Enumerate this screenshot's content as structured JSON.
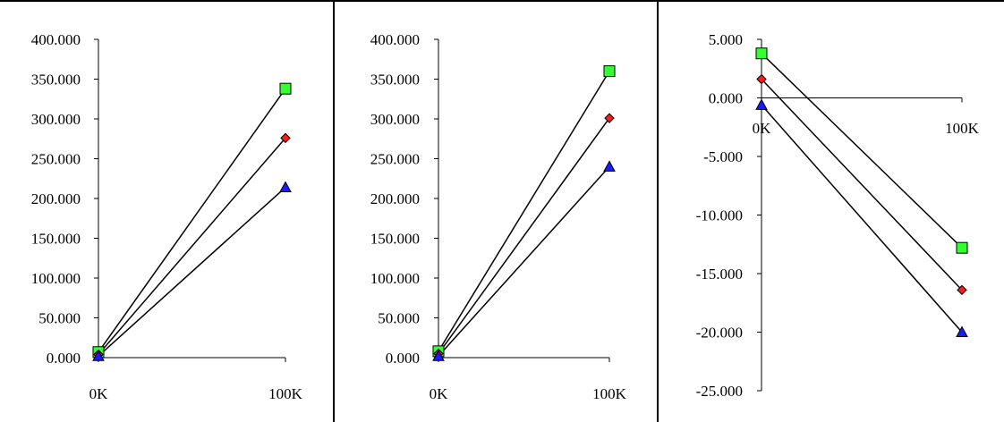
{
  "chart_data": [
    {
      "type": "line",
      "categories": [
        "0K",
        "100K"
      ],
      "yticks": [
        "400.000",
        "350.000",
        "300.000",
        "250.000",
        "200.000",
        "150.000",
        "100.000",
        "50.000",
        "0.000"
      ],
      "ylim": [
        0,
        400
      ],
      "grid": false,
      "legend": "none",
      "series": [
        {
          "values": [
            7,
            338
          ],
          "marker": "square",
          "color": "#33ff33"
        },
        {
          "values": [
            4,
            276
          ],
          "marker": "diamond",
          "color": "#ff1a1a"
        },
        {
          "values": [
            2,
            214
          ],
          "marker": "triangle",
          "color": "#1a1aff"
        }
      ]
    },
    {
      "type": "line",
      "categories": [
        "0K",
        "100K"
      ],
      "yticks": [
        "400.000",
        "350.000",
        "300.000",
        "250.000",
        "200.000",
        "150.000",
        "100.000",
        "50.000",
        "0.000"
      ],
      "ylim": [
        0,
        400
      ],
      "grid": false,
      "legend": "none",
      "series": [
        {
          "values": [
            8,
            360
          ],
          "marker": "square",
          "color": "#33ff33"
        },
        {
          "values": [
            5,
            301
          ],
          "marker": "diamond",
          "color": "#ff1a1a"
        },
        {
          "values": [
            2,
            240
          ],
          "marker": "triangle",
          "color": "#1a1aff"
        }
      ]
    },
    {
      "type": "line",
      "categories": [
        "0K",
        "100K"
      ],
      "yticks": [
        "5.000",
        "0.000",
        "-5.000",
        "-10.000",
        "-15.000",
        "-20.000",
        "-25.000"
      ],
      "ylim": [
        -25,
        5
      ],
      "grid": false,
      "legend": "none",
      "series": [
        {
          "values": [
            3.8,
            -12.8
          ],
          "marker": "square",
          "color": "#33ff33"
        },
        {
          "values": [
            1.6,
            -16.4
          ],
          "marker": "diamond",
          "color": "#ff1a1a"
        },
        {
          "values": [
            -0.6,
            -20.0
          ],
          "marker": "triangle",
          "color": "#1a1aff"
        }
      ]
    }
  ]
}
